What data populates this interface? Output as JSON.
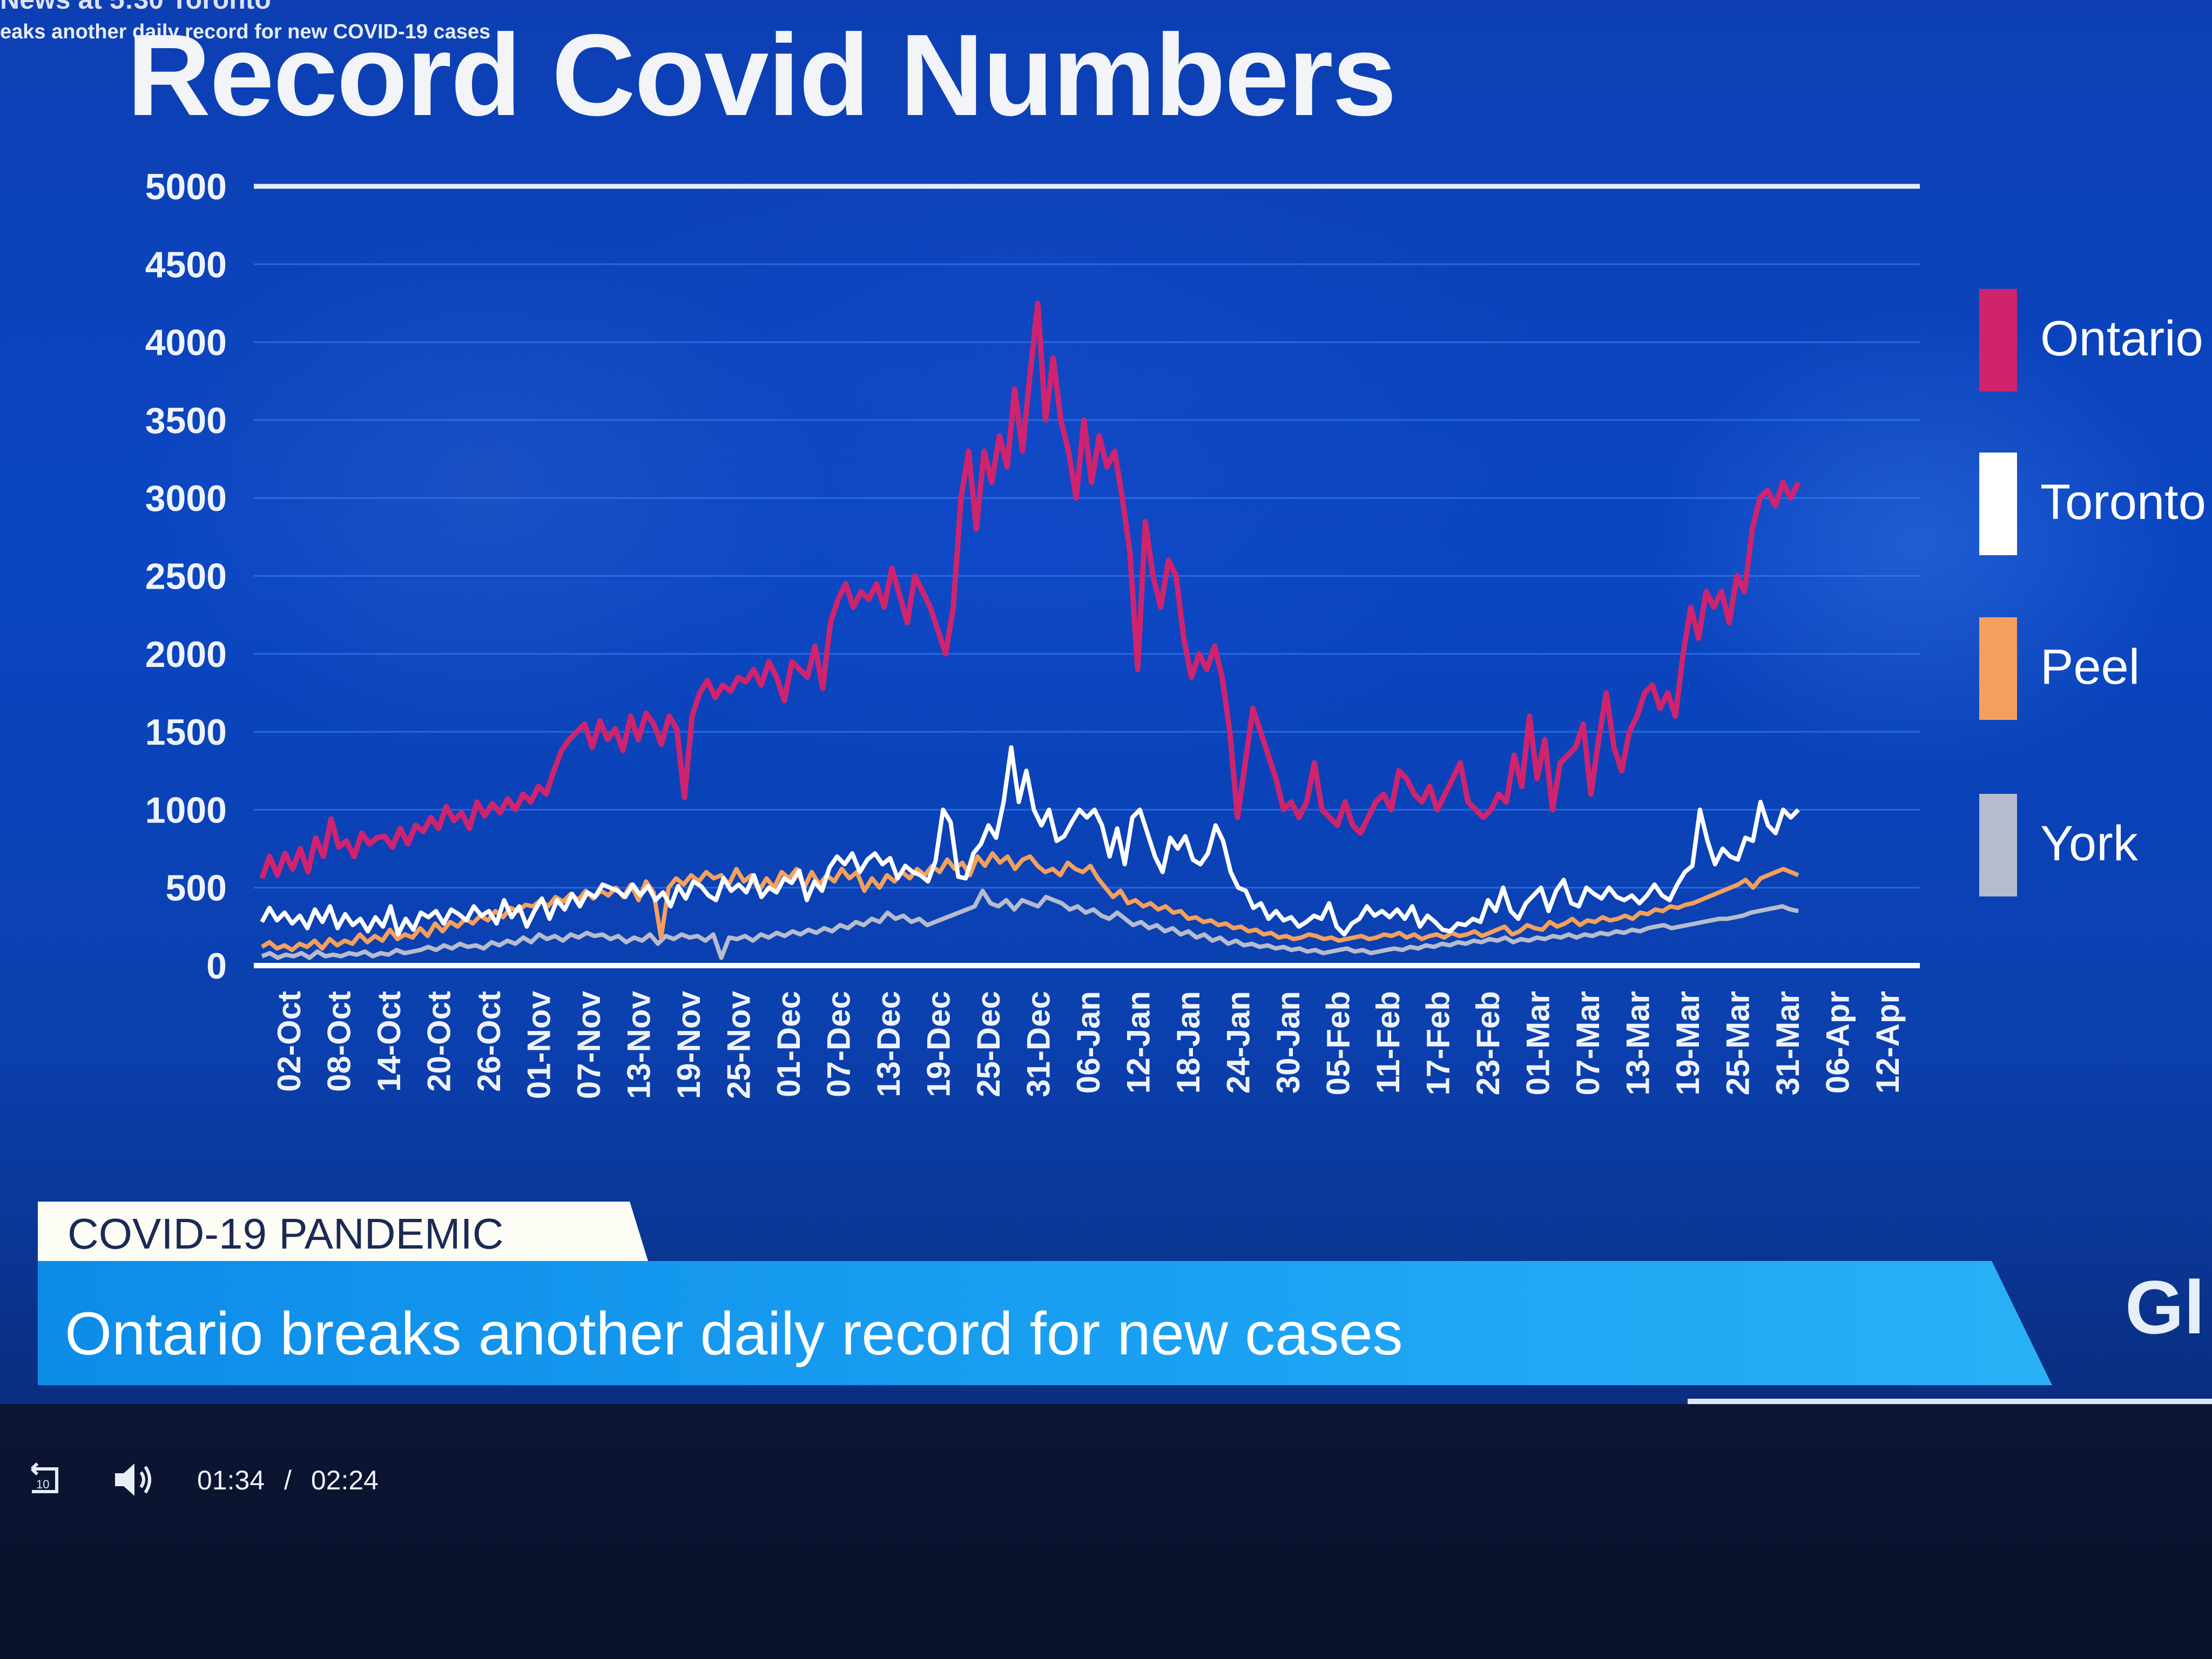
{
  "news": {
    "program": "News at 5:30 Toronto",
    "subheadline": "eaks another daily record for new COVID-19 cases"
  },
  "title": "Record Covid Numbers",
  "legend": [
    {
      "label": "Ontario",
      "color": "#d0236e"
    },
    {
      "label": "Toronto",
      "color": "#ffffff"
    },
    {
      "label": "Peel",
      "color": "#f4a05c"
    },
    {
      "label": "York",
      "color": "#b6bccd"
    }
  ],
  "banner": {
    "label": "COVID-19 PANDEMIC",
    "headline": "Ontario breaks another daily record for new cases",
    "logo": "Gl"
  },
  "player": {
    "current_time": "01:34",
    "separator": "/",
    "duration": "02:24",
    "replay_badge": "10"
  },
  "chart_data": {
    "type": "line",
    "title": "Record Covid Numbers",
    "y_ticks": [
      0,
      500,
      1000,
      1500,
      2000,
      2500,
      3000,
      3500,
      4000,
      4500,
      5000
    ],
    "ylim": [
      0,
      5000
    ],
    "x_tick_labels": [
      "02-Oct",
      "08-Oct",
      "14-Oct",
      "20-Oct",
      "26-Oct",
      "01-Nov",
      "07-Nov",
      "13-Nov",
      "19-Nov",
      "25-Nov",
      "01-Dec",
      "07-Dec",
      "13-Dec",
      "19-Dec",
      "25-Dec",
      "31-Dec",
      "06-Jan",
      "12-Jan",
      "18-Jan",
      "24-Jan",
      "30-Jan",
      "05-Feb",
      "11-Feb",
      "17-Feb",
      "23-Feb",
      "01-Mar",
      "07-Mar",
      "13-Mar",
      "19-Mar",
      "25-Mar",
      "31-Mar",
      "06-Apr",
      "12-Apr"
    ],
    "grid": true,
    "legend_position": "right",
    "series": [
      {
        "name": "Ontario",
        "values": [
          560,
          700,
          580,
          720,
          620,
          750,
          600,
          820,
          700,
          940,
          760,
          800,
          700,
          850,
          780,
          820,
          830,
          760,
          880,
          780,
          900,
          860,
          950,
          880,
          1020,
          930,
          980,
          880,
          1050,
          960,
          1040,
          980,
          1070,
          1000,
          1100,
          1050,
          1150,
          1100,
          1250,
          1380,
          1450,
          1500,
          1550,
          1400,
          1570,
          1450,
          1520,
          1380,
          1600,
          1450,
          1620,
          1550,
          1420,
          1600,
          1520,
          1080,
          1600,
          1750,
          1830,
          1720,
          1800,
          1760,
          1850,
          1820,
          1900,
          1800,
          1950,
          1850,
          1700,
          1950,
          1900,
          1850,
          2050,
          1780,
          2200,
          2350,
          2450,
          2300,
          2400,
          2350,
          2450,
          2300,
          2550,
          2380,
          2200,
          2500,
          2400,
          2300,
          2150,
          2000,
          2300,
          3000,
          3300,
          2800,
          3300,
          3100,
          3400,
          3200,
          3700,
          3300,
          3800,
          4250,
          3500,
          3900,
          3500,
          3300,
          3000,
          3500,
          3100,
          3400,
          3200,
          3300,
          3000,
          2650,
          1900,
          2850,
          2500,
          2300,
          2600,
          2500,
          2100,
          1850,
          2000,
          1900,
          2050,
          1850,
          1500,
          950,
          1300,
          1650,
          1500,
          1350,
          1200,
          1000,
          1050,
          950,
          1050,
          1300,
          1000,
          950,
          900,
          1050,
          900,
          850,
          950,
          1050,
          1100,
          1000,
          1250,
          1200,
          1100,
          1050,
          1150,
          1000,
          1100,
          1200,
          1300,
          1050,
          1000,
          950,
          1000,
          1100,
          1050,
          1350,
          1150,
          1600,
          1200,
          1450,
          1000,
          1300,
          1350,
          1400,
          1550,
          1100,
          1450,
          1750,
          1400,
          1250,
          1500,
          1600,
          1750,
          1800,
          1650,
          1750,
          1600,
          2000,
          2300,
          2100,
          2400,
          2300,
          2400,
          2200,
          2500,
          2400,
          2800,
          3000,
          3050,
          2950,
          3100,
          3000,
          3100
        ]
      },
      {
        "name": "Toronto",
        "values": [
          280,
          370,
          290,
          340,
          270,
          320,
          240,
          360,
          280,
          380,
          240,
          330,
          260,
          300,
          220,
          310,
          250,
          380,
          200,
          300,
          230,
          340,
          310,
          350,
          270,
          360,
          330,
          290,
          380,
          320,
          350,
          270,
          420,
          310,
          380,
          250,
          350,
          430,
          300,
          420,
          360,
          460,
          380,
          470,
          440,
          520,
          500,
          480,
          440,
          520,
          450,
          510,
          420,
          470,
          380,
          510,
          430,
          540,
          510,
          450,
          420,
          560,
          480,
          520,
          470,
          580,
          440,
          500,
          470,
          560,
          530,
          610,
          420,
          540,
          480,
          630,
          700,
          650,
          720,
          600,
          680,
          720,
          650,
          690,
          560,
          640,
          600,
          580,
          540,
          670,
          1000,
          920,
          570,
          560,
          720,
          780,
          900,
          820,
          1050,
          1400,
          1050,
          1250,
          1000,
          900,
          1000,
          800,
          830,
          920,
          1000,
          950,
          1000,
          900,
          700,
          880,
          650,
          950,
          1000,
          850,
          700,
          600,
          820,
          750,
          830,
          680,
          650,
          720,
          900,
          800,
          600,
          500,
          480,
          370,
          400,
          300,
          350,
          290,
          310,
          250,
          280,
          320,
          300,
          400,
          250,
          200,
          270,
          300,
          380,
          320,
          350,
          310,
          360,
          300,
          380,
          250,
          320,
          280,
          230,
          220,
          270,
          260,
          300,
          280,
          420,
          350,
          500,
          350,
          300,
          400,
          450,
          500,
          350,
          480,
          550,
          400,
          380,
          500,
          460,
          430,
          500,
          440,
          420,
          450,
          400,
          450,
          520,
          450,
          420,
          520,
          600,
          640,
          1000,
          800,
          650,
          750,
          700,
          680,
          820,
          800,
          1050,
          900,
          850,
          1000,
          950,
          1000
        ]
      },
      {
        "name": "Peel",
        "values": [
          120,
          150,
          110,
          130,
          100,
          140,
          120,
          160,
          110,
          170,
          130,
          160,
          140,
          200,
          150,
          190,
          160,
          230,
          170,
          200,
          180,
          240,
          190,
          270,
          220,
          280,
          250,
          300,
          270,
          320,
          290,
          350,
          310,
          370,
          350,
          390,
          380,
          420,
          380,
          440,
          410,
          460,
          420,
          480,
          430,
          480,
          450,
          500,
          440,
          520,
          420,
          540,
          470,
          180,
          500,
          560,
          520,
          580,
          540,
          600,
          560,
          580,
          520,
          620,
          540,
          580,
          480,
          560,
          500,
          600,
          560,
          620,
          500,
          600,
          520,
          580,
          540,
          620,
          560,
          600,
          480,
          560,
          500,
          580,
          540,
          600,
          560,
          620,
          580,
          640,
          600,
          680,
          620,
          660,
          580,
          700,
          640,
          720,
          660,
          700,
          620,
          680,
          700,
          640,
          600,
          620,
          580,
          660,
          620,
          600,
          640,
          560,
          500,
          440,
          480,
          400,
          420,
          380,
          400,
          360,
          380,
          340,
          350,
          300,
          310,
          280,
          290,
          260,
          270,
          240,
          250,
          220,
          230,
          200,
          210,
          180,
          190,
          170,
          180,
          200,
          190,
          170,
          180,
          160,
          170,
          180,
          190,
          170,
          180,
          200,
          190,
          210,
          180,
          200,
          170,
          190,
          200,
          180,
          210,
          190,
          200,
          220,
          190,
          210,
          230,
          250,
          200,
          220,
          260,
          240,
          230,
          280,
          250,
          270,
          300,
          260,
          290,
          280,
          310,
          290,
          300,
          320,
          300,
          340,
          330,
          360,
          350,
          380,
          370,
          390,
          400,
          420,
          440,
          460,
          480,
          500,
          520,
          550,
          500,
          560,
          580,
          600,
          620,
          600,
          580
        ]
      },
      {
        "name": "York",
        "values": [
          60,
          80,
          50,
          70,
          60,
          80,
          50,
          90,
          60,
          70,
          60,
          80,
          70,
          90,
          60,
          80,
          70,
          100,
          80,
          90,
          100,
          120,
          100,
          130,
          110,
          140,
          120,
          130,
          110,
          150,
          130,
          160,
          140,
          180,
          150,
          200,
          170,
          190,
          160,
          200,
          180,
          210,
          190,
          200,
          170,
          190,
          150,
          180,
          160,
          200,
          140,
          190,
          170,
          200,
          180,
          190,
          160,
          200,
          50,
          180,
          170,
          190,
          160,
          200,
          180,
          210,
          190,
          220,
          200,
          230,
          210,
          240,
          220,
          260,
          240,
          280,
          260,
          300,
          280,
          340,
          300,
          320,
          280,
          300,
          260,
          280,
          300,
          320,
          340,
          360,
          380,
          480,
          400,
          380,
          420,
          360,
          420,
          400,
          380,
          440,
          420,
          400,
          360,
          380,
          340,
          360,
          320,
          300,
          340,
          300,
          260,
          280,
          240,
          260,
          220,
          240,
          200,
          220,
          180,
          200,
          160,
          180,
          140,
          160,
          130,
          140,
          120,
          130,
          110,
          120,
          100,
          110,
          90,
          100,
          80,
          90,
          100,
          110,
          90,
          100,
          80,
          90,
          100,
          110,
          100,
          120,
          110,
          130,
          120,
          140,
          130,
          150,
          140,
          160,
          150,
          170,
          160,
          180,
          150,
          170,
          160,
          180,
          170,
          190,
          180,
          200,
          180,
          200,
          190,
          210,
          200,
          220,
          210,
          230,
          220,
          240,
          250,
          260,
          240,
          250,
          260,
          270,
          280,
          290,
          300,
          300,
          310,
          320,
          340,
          350,
          360,
          370,
          380,
          360,
          350
        ]
      }
    ]
  }
}
